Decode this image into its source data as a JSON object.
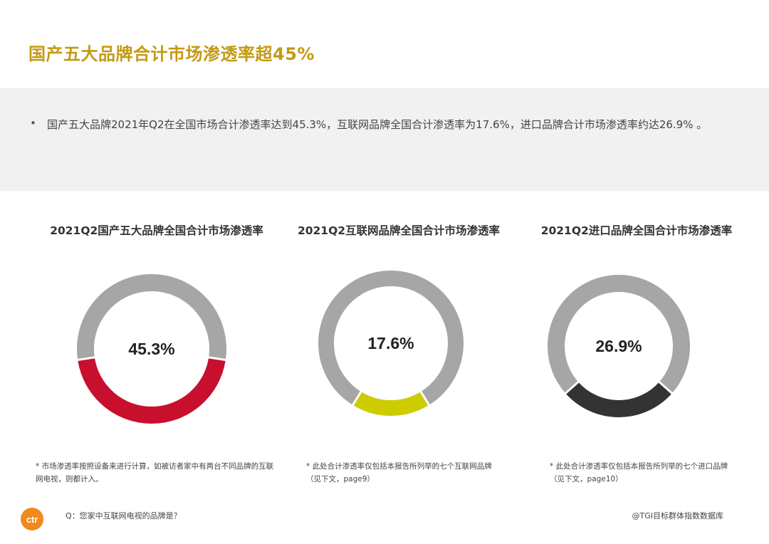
{
  "page_title": "国产五大品牌合计市场渗透率超45%",
  "summary": {
    "bullet": "•",
    "text": "国产五大品牌2021年Q2在全国市场合计渗透率达到45.3%，互联网品牌全国合计渗透率为17.6%，进口品牌合计市场渗透率约达26.9% 。"
  },
  "colors": {
    "title": "#c49a12",
    "ring_rest": "#a6a6a6",
    "domestic": "#c8102e",
    "internet": "#cccc00",
    "imported": "#333333"
  },
  "charts": [
    {
      "title": "2021Q2国产五大品牌全国合计市场渗透率",
      "value_label": "45.3%"
    },
    {
      "title": "2021Q2互联网品牌全国合计市场渗透率",
      "value_label": "17.6%"
    },
    {
      "title": "2021Q2进口品牌全国合计市场渗透率",
      "value_label": "26.9%"
    }
  ],
  "chart_data": [
    {
      "type": "pie",
      "title": "2021Q2国产五大品牌全国合计市场渗透率",
      "values": [
        45.3,
        54.7
      ],
      "highlight_color": "#c8102e"
    },
    {
      "type": "pie",
      "title": "2021Q2互联网品牌全国合计市场渗透率",
      "values": [
        17.6,
        82.4
      ],
      "highlight_color": "#cccc00"
    },
    {
      "type": "pie",
      "title": "2021Q2进口品牌全国合计市场渗透率",
      "values": [
        26.9,
        73.1
      ],
      "highlight_color": "#333333"
    }
  ],
  "footnotes": {
    "domestic": "* 市场渗透率按照设备来进行计算，如被访者家中有两台不同品牌的互联网电视，则都计入。",
    "internet": "* 此处合计渗透率仅包括本报告所列举的七个互联网品牌（见下文，page9）",
    "imported": "* 此处合计渗透率仅包括本报告所列举的七个进口品牌（见下文，page10）"
  },
  "footer": {
    "logo_text": "ctr",
    "question": "Q：您家中互联网电视的品牌是？",
    "source": "@TGI目标群体指数数据库"
  },
  "icons": {
    "logo": "ctr-logo"
  }
}
